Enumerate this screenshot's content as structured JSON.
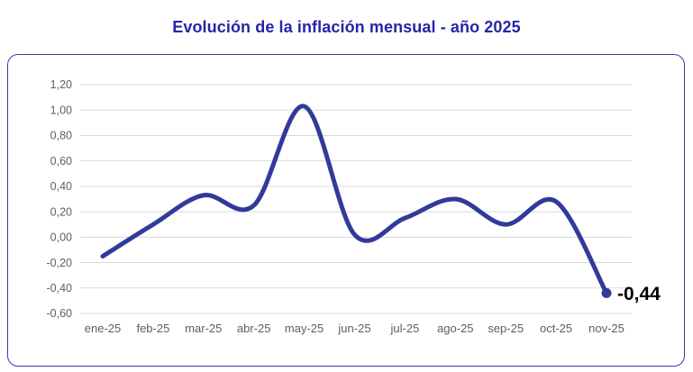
{
  "page": {
    "title": "Evolución de la inflación mensual - año 2025"
  },
  "colors": {
    "title": "#2525a8",
    "card_border": "#3a3aae",
    "line": "#323a99",
    "grid": "#d9d9d9",
    "ticks": "#5f5f5f",
    "end_label": "#000000",
    "background": "#ffffff"
  },
  "chart_data": {
    "type": "line",
    "title": "Evolución de la inflación mensual - año 2025",
    "xlabel": "",
    "ylabel": "",
    "categories": [
      "ene-25",
      "feb-25",
      "mar-25",
      "abr-25",
      "may-25",
      "jun-25",
      "jul-25",
      "ago-25",
      "sep-25",
      "oct-25",
      "nov-25"
    ],
    "series": [
      {
        "name": "inflación mensual",
        "values": [
          -0.15,
          0.1,
          0.33,
          0.25,
          1.03,
          0.02,
          0.15,
          0.3,
          0.1,
          0.28,
          -0.44
        ]
      }
    ],
    "ylim": [
      -0.6,
      1.2
    ],
    "y_tick_step": 0.2,
    "y_tick_labels": [
      "1,20",
      "1,00",
      "0,80",
      "0,60",
      "0,40",
      "0,20",
      "0,00",
      "-0,20",
      "-0,40",
      "-0,60"
    ],
    "grid": true,
    "legend": false,
    "smooth": true,
    "last_point_label": "-0,44"
  }
}
